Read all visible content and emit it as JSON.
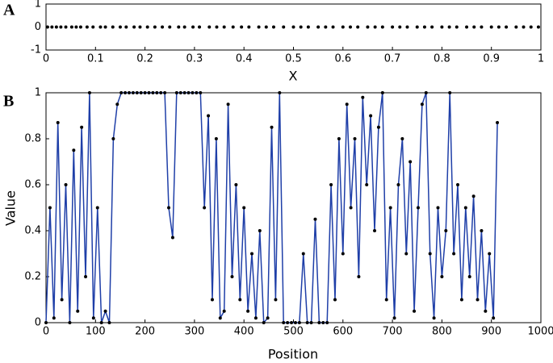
{
  "chart_data": [
    {
      "type": "scatter",
      "panel_label": "A",
      "xlabel": "X",
      "x": [
        0.003,
        0.012,
        0.021,
        0.03,
        0.04,
        0.052,
        0.061,
        0.07,
        0.083,
        0.095,
        0.11,
        0.12,
        0.135,
        0.15,
        0.162,
        0.178,
        0.19,
        0.205,
        0.22,
        0.235,
        0.25,
        0.268,
        0.28,
        0.297,
        0.31,
        0.33,
        0.345,
        0.36,
        0.378,
        0.395,
        0.41,
        0.43,
        0.445,
        0.46,
        0.48,
        0.5,
        0.515,
        0.53,
        0.55,
        0.565,
        0.58,
        0.6,
        0.615,
        0.63,
        0.65,
        0.665,
        0.68,
        0.7,
        0.715,
        0.73,
        0.75,
        0.765,
        0.78,
        0.8,
        0.815,
        0.83,
        0.85,
        0.865,
        0.88,
        0.9,
        0.915,
        0.93,
        0.95,
        0.965,
        0.98,
        0.995
      ],
      "values": [
        0,
        0,
        0,
        0,
        0,
        0,
        0,
        0,
        0,
        0,
        0,
        0,
        0,
        0,
        0,
        0,
        0,
        0,
        0,
        0,
        0,
        0,
        0,
        0,
        0,
        0,
        0,
        0,
        0,
        0,
        0,
        0,
        0,
        0,
        0,
        0,
        0,
        0,
        0,
        0,
        0,
        0,
        0,
        0,
        0,
        0,
        0,
        0,
        0,
        0,
        0,
        0,
        0,
        0,
        0,
        0,
        0,
        0,
        0,
        0,
        0,
        0,
        0,
        0,
        0,
        0
      ],
      "xlim": [
        0,
        1
      ],
      "xticks": [
        0,
        0.1,
        0.2,
        0.3,
        0.4,
        0.5,
        0.6,
        0.7,
        0.8,
        0.9,
        1
      ],
      "ylim": [
        -1,
        1
      ],
      "yticks": [
        -1,
        0,
        1
      ],
      "color": "#000000",
      "grid": false
    },
    {
      "type": "line",
      "panel_label": "B",
      "xlabel": "Position",
      "ylabel": "Value",
      "x": [
        0,
        8,
        16,
        24,
        32,
        40,
        48,
        56,
        64,
        72,
        80,
        88,
        96,
        104,
        112,
        120,
        128,
        136,
        144,
        152,
        160,
        168,
        176,
        184,
        192,
        200,
        208,
        216,
        224,
        232,
        240,
        248,
        256,
        264,
        272,
        280,
        288,
        296,
        304,
        312,
        320,
        328,
        336,
        344,
        352,
        360,
        368,
        376,
        384,
        392,
        400,
        408,
        416,
        424,
        432,
        440,
        448,
        456,
        464,
        472,
        480,
        488,
        496,
        504,
        512,
        520,
        528,
        536,
        544,
        552,
        560,
        568,
        576,
        584,
        592,
        600,
        608,
        616,
        624,
        632,
        640,
        648,
        656,
        664,
        672,
        680,
        688,
        696,
        704,
        712,
        720,
        728,
        736,
        744,
        752,
        760,
        768,
        776,
        784,
        792,
        800,
        808,
        816,
        824,
        832,
        840,
        848,
        856,
        864,
        872,
        880,
        888,
        896,
        904,
        912
      ],
      "values": [
        0,
        0.5,
        0.02,
        0.87,
        0.1,
        0.6,
        0,
        0.75,
        0.05,
        0.85,
        0.2,
        1,
        0.02,
        0.5,
        0,
        0.05,
        0,
        0.8,
        0.95,
        1,
        1,
        1,
        1,
        1,
        1,
        1,
        1,
        1,
        1,
        1,
        1,
        0.5,
        0.37,
        1,
        1,
        1,
        1,
        1,
        1,
        1,
        0.5,
        0.9,
        0.1,
        0.8,
        0.02,
        0.05,
        0.95,
        0.2,
        0.6,
        0.1,
        0.5,
        0.05,
        0.3,
        0.02,
        0.4,
        0,
        0.02,
        0.85,
        0.1,
        1,
        0,
        0,
        0,
        0,
        0,
        0.3,
        0,
        0,
        0.45,
        0,
        0,
        0,
        0.6,
        0.1,
        0.8,
        0.3,
        0.95,
        0.5,
        0.8,
        0.2,
        0.98,
        0.6,
        0.9,
        0.4,
        0.85,
        1,
        0.1,
        0.5,
        0.02,
        0.6,
        0.8,
        0.3,
        0.7,
        0.05,
        0.5,
        0.95,
        1,
        0.3,
        0.02,
        0.5,
        0.2,
        0.4,
        1,
        0.3,
        0.6,
        0.1,
        0.5,
        0.2,
        0.55,
        0.1,
        0.4,
        0.05,
        0.3,
        0.02,
        0.87
      ],
      "xlim": [
        0,
        1000
      ],
      "xticks": [
        0,
        100,
        200,
        300,
        400,
        500,
        600,
        700,
        800,
        900,
        1000
      ],
      "ylim": [
        0,
        1
      ],
      "yticks": [
        0,
        0.2,
        0.4,
        0.6,
        0.8,
        1
      ],
      "color": "#1f3fa8",
      "marker_color": "#000000",
      "grid": false
    }
  ]
}
